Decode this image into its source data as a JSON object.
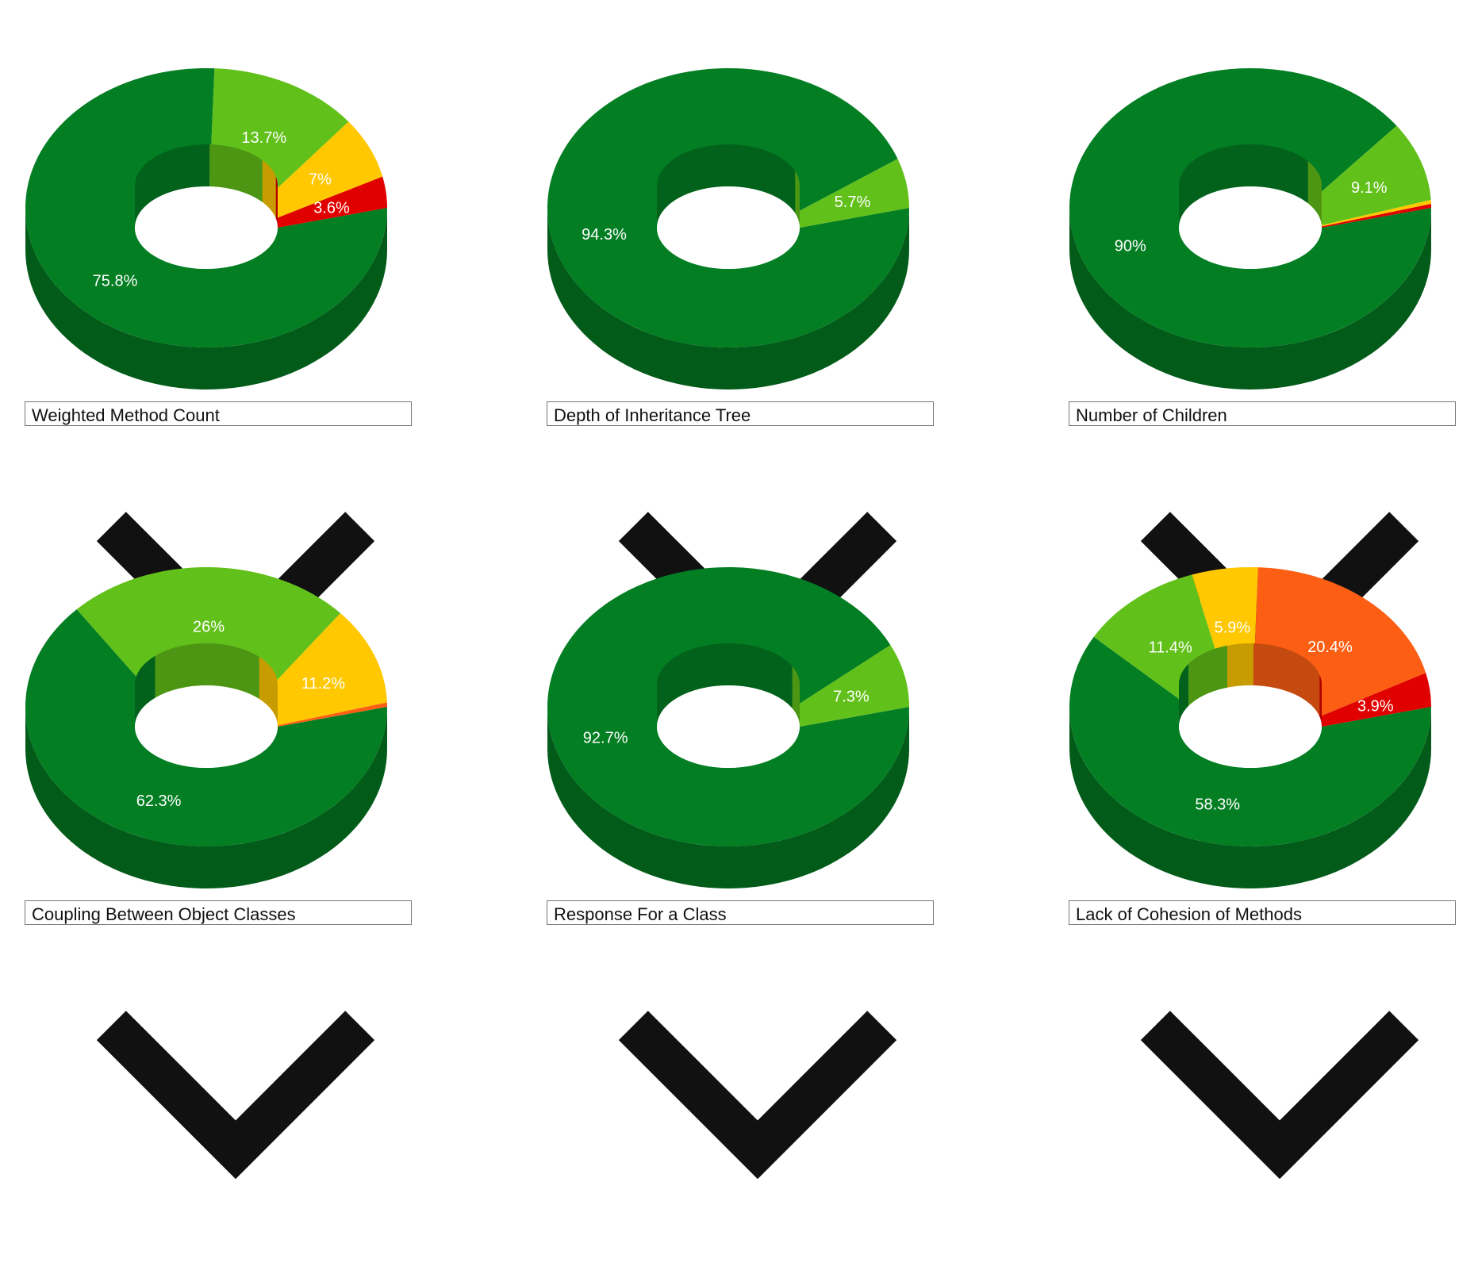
{
  "colors": {
    "green": "#037e23",
    "light_green": "#62c01a",
    "yellow": "#ffc800",
    "orange": "#fc5f14",
    "red": "#e00000"
  },
  "chart_data": [
    {
      "type": "pie",
      "style": "3d-donut",
      "metric": "Weighted Method Count",
      "slices": [
        {
          "label": "75.8%",
          "value": 75.8,
          "color": "#037e23"
        },
        {
          "label": "13.7%",
          "value": 13.7,
          "color": "#62c01a"
        },
        {
          "label": "7%",
          "value": 7.0,
          "color": "#ffc800"
        },
        {
          "label": "3.6%",
          "value": 3.6,
          "color": "#e00000"
        }
      ]
    },
    {
      "type": "pie",
      "style": "3d-donut",
      "metric": "Depth of Inheritance Tree",
      "slices": [
        {
          "label": "94.3%",
          "value": 94.3,
          "color": "#037e23"
        },
        {
          "label": "5.7%",
          "value": 5.7,
          "color": "#62c01a"
        }
      ]
    },
    {
      "type": "pie",
      "style": "3d-donut",
      "metric": "Number of Children",
      "slices": [
        {
          "label": "90%",
          "value": 90.0,
          "color": "#037e23"
        },
        {
          "label": "9.1%",
          "value": 9.1,
          "color": "#62c01a"
        },
        {
          "label": "",
          "value": 0.45,
          "color": "#ffc800"
        },
        {
          "label": "",
          "value": 0.45,
          "color": "#e00000"
        }
      ]
    },
    {
      "type": "pie",
      "style": "3d-donut",
      "metric": "Coupling Between Object Classes",
      "slices": [
        {
          "label": "62.3%",
          "value": 62.3,
          "color": "#037e23"
        },
        {
          "label": "26%",
          "value": 26.0,
          "color": "#62c01a"
        },
        {
          "label": "11.2%",
          "value": 11.2,
          "color": "#ffc800"
        },
        {
          "label": "",
          "value": 0.5,
          "color": "#fc5f14"
        }
      ]
    },
    {
      "type": "pie",
      "style": "3d-donut",
      "metric": "Response For a Class",
      "slices": [
        {
          "label": "92.7%",
          "value": 92.7,
          "color": "#037e23"
        },
        {
          "label": "7.3%",
          "value": 7.3,
          "color": "#62c01a"
        }
      ]
    },
    {
      "type": "pie",
      "style": "3d-donut",
      "metric": "Lack of Cohesion of Methods",
      "slices": [
        {
          "label": "58.3%",
          "value": 58.3,
          "color": "#037e23"
        },
        {
          "label": "11.4%",
          "value": 11.4,
          "color": "#62c01a"
        },
        {
          "label": "5.9%",
          "value": 5.9,
          "color": "#ffc800"
        },
        {
          "label": "20.4%",
          "value": 20.4,
          "color": "#fc5f14"
        },
        {
          "label": "3.9%",
          "value": 3.9,
          "color": "#e00000"
        }
      ]
    }
  ]
}
